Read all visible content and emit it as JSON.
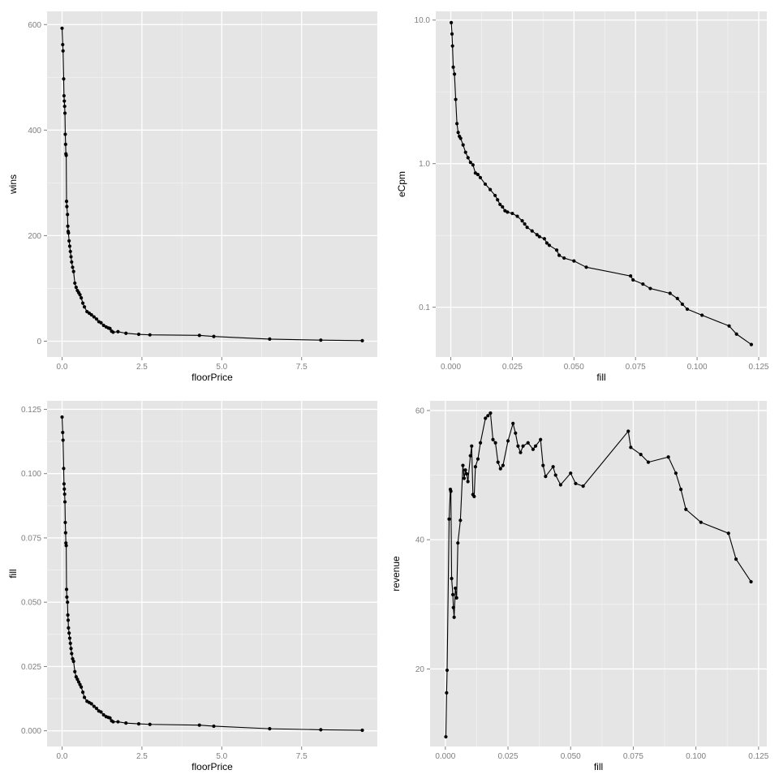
{
  "colors": {
    "panel_background": "#e5e5e5",
    "grid_major": "#ffffff",
    "grid_minor": "#f2f2f2",
    "series": "#000000",
    "tick_label": "#7f7f7f"
  },
  "chart_data": [
    {
      "type": "line",
      "markers": true,
      "xlabel": "floorPrice",
      "ylabel": "wins",
      "xlim": [
        -0.47,
        9.87
      ],
      "ylim": [
        -30,
        625
      ],
      "x_ticks": [
        0,
        2.5,
        5,
        7.5
      ],
      "x_tick_labels": [
        "0.0",
        "2.5",
        "5.0",
        "7.5"
      ],
      "y_ticks": [
        0,
        200,
        400,
        600
      ],
      "y_tick_labels": [
        "0",
        "200",
        "400",
        "600"
      ],
      "x": [
        0.0,
        0.02,
        0.03,
        0.05,
        0.06,
        0.07,
        0.08,
        0.09,
        0.1,
        0.11,
        0.12,
        0.13,
        0.14,
        0.15,
        0.17,
        0.18,
        0.19,
        0.2,
        0.22,
        0.24,
        0.26,
        0.28,
        0.3,
        0.33,
        0.36,
        0.4,
        0.44,
        0.48,
        0.52,
        0.56,
        0.6,
        0.65,
        0.7,
        0.78,
        0.85,
        0.92,
        1.0,
        1.08,
        1.15,
        1.22,
        1.3,
        1.38,
        1.45,
        1.5,
        1.55,
        1.6,
        1.75,
        2.0,
        2.4,
        2.75,
        4.3,
        4.75,
        6.5,
        8.1,
        9.4
      ],
      "y": [
        593,
        562,
        550,
        497,
        465,
        455,
        445,
        432,
        392,
        373,
        355,
        352,
        265,
        255,
        240,
        218,
        208,
        205,
        190,
        180,
        170,
        160,
        150,
        140,
        132,
        110,
        102,
        96,
        92,
        88,
        82,
        72,
        65,
        56,
        53,
        50,
        46,
        42,
        37,
        35,
        30,
        27,
        25,
        24,
        19,
        17,
        18,
        15,
        13,
        12,
        11,
        9,
        4,
        2,
        1
      ]
    },
    {
      "type": "line",
      "markers": true,
      "xlabel": "fill",
      "ylabel": "eCpm",
      "y_scale": "log10",
      "xlim": [
        -0.0061,
        0.1283
      ],
      "ylim": [
        0.045,
        11.5
      ],
      "x_ticks": [
        0,
        0.025,
        0.05,
        0.075,
        0.1,
        0.125
      ],
      "x_tick_labels": [
        "0.000",
        "0.025",
        "0.050",
        "0.075",
        "0.100",
        "0.125"
      ],
      "y_ticks": [
        0.1,
        1.0,
        10.0
      ],
      "y_tick_labels": [
        "0.1",
        "1.0",
        "10.0"
      ],
      "x": [
        0.0002,
        0.0005,
        0.0007,
        0.001,
        0.0015,
        0.002,
        0.0025,
        0.003,
        0.0035,
        0.004,
        0.005,
        0.006,
        0.007,
        0.008,
        0.009,
        0.01,
        0.011,
        0.012,
        0.014,
        0.016,
        0.018,
        0.019,
        0.02,
        0.021,
        0.022,
        0.023,
        0.025,
        0.027,
        0.029,
        0.03,
        0.031,
        0.033,
        0.035,
        0.036,
        0.038,
        0.039,
        0.04,
        0.043,
        0.044,
        0.046,
        0.05,
        0.055,
        0.073,
        0.074,
        0.078,
        0.081,
        0.089,
        0.092,
        0.094,
        0.096,
        0.102,
        0.113,
        0.116,
        0.122
      ],
      "y": [
        9.6,
        8.0,
        6.6,
        4.7,
        4.2,
        2.8,
        1.9,
        1.65,
        1.55,
        1.5,
        1.35,
        1.2,
        1.1,
        1.02,
        0.98,
        0.86,
        0.84,
        0.8,
        0.72,
        0.66,
        0.6,
        0.56,
        0.52,
        0.5,
        0.47,
        0.46,
        0.45,
        0.43,
        0.4,
        0.38,
        0.36,
        0.34,
        0.32,
        0.31,
        0.3,
        0.28,
        0.27,
        0.25,
        0.23,
        0.22,
        0.21,
        0.19,
        0.165,
        0.155,
        0.145,
        0.135,
        0.125,
        0.115,
        0.105,
        0.097,
        0.088,
        0.074,
        0.065,
        0.055
      ]
    },
    {
      "type": "line",
      "markers": true,
      "xlabel": "floorPrice",
      "ylabel": "fill",
      "xlim": [
        -0.47,
        9.87
      ],
      "ylim": [
        -0.0061,
        0.1283
      ],
      "x_ticks": [
        0,
        2.5,
        5,
        7.5
      ],
      "x_tick_labels": [
        "0.0",
        "2.5",
        "5.0",
        "7.5"
      ],
      "y_ticks": [
        0,
        0.025,
        0.05,
        0.075,
        0.1,
        0.125
      ],
      "y_tick_labels": [
        "0.000",
        "0.025",
        "0.050",
        "0.075",
        "0.100",
        "0.125"
      ],
      "x": [
        0.0,
        0.02,
        0.03,
        0.05,
        0.06,
        0.07,
        0.08,
        0.09,
        0.1,
        0.11,
        0.12,
        0.13,
        0.14,
        0.15,
        0.17,
        0.18,
        0.19,
        0.2,
        0.22,
        0.24,
        0.26,
        0.28,
        0.3,
        0.33,
        0.36,
        0.4,
        0.44,
        0.48,
        0.52,
        0.56,
        0.6,
        0.65,
        0.7,
        0.78,
        0.85,
        0.92,
        1.0,
        1.08,
        1.15,
        1.22,
        1.3,
        1.38,
        1.45,
        1.5,
        1.55,
        1.6,
        1.75,
        2.0,
        2.4,
        2.75,
        4.3,
        4.75,
        6.5,
        8.1,
        9.4
      ],
      "y": [
        0.122,
        0.116,
        0.113,
        0.102,
        0.096,
        0.094,
        0.092,
        0.089,
        0.081,
        0.077,
        0.073,
        0.072,
        0.055,
        0.052,
        0.05,
        0.045,
        0.043,
        0.04,
        0.038,
        0.036,
        0.034,
        0.032,
        0.03,
        0.028,
        0.027,
        0.023,
        0.021,
        0.02,
        0.019,
        0.018,
        0.017,
        0.015,
        0.013,
        0.0115,
        0.011,
        0.0105,
        0.0095,
        0.0087,
        0.0077,
        0.0073,
        0.0062,
        0.0055,
        0.0052,
        0.005,
        0.0039,
        0.0035,
        0.0035,
        0.003,
        0.0027,
        0.0025,
        0.0022,
        0.0018,
        0.0008,
        0.0004,
        0.0002
      ]
    },
    {
      "type": "line",
      "markers": true,
      "xlabel": "fill",
      "ylabel": "revenue",
      "xlim": [
        -0.0061,
        0.1283
      ],
      "ylim": [
        8,
        61.5
      ],
      "x_ticks": [
        0,
        0.025,
        0.05,
        0.075,
        0.1,
        0.125
      ],
      "x_tick_labels": [
        "0.000",
        "0.025",
        "0.050",
        "0.075",
        "0.100",
        "0.125"
      ],
      "y_ticks": [
        20,
        40,
        60
      ],
      "y_tick_labels": [
        "20",
        "40",
        "60"
      ],
      "x": [
        0.0002,
        0.0005,
        0.0007,
        0.0015,
        0.002,
        0.0022,
        0.0025,
        0.003,
        0.0032,
        0.0035,
        0.004,
        0.0045,
        0.005,
        0.006,
        0.007,
        0.0075,
        0.008,
        0.0085,
        0.009,
        0.01,
        0.0105,
        0.011,
        0.0115,
        0.012,
        0.013,
        0.014,
        0.016,
        0.017,
        0.018,
        0.019,
        0.02,
        0.021,
        0.022,
        0.023,
        0.025,
        0.027,
        0.028,
        0.029,
        0.03,
        0.031,
        0.033,
        0.035,
        0.036,
        0.038,
        0.039,
        0.04,
        0.043,
        0.044,
        0.046,
        0.05,
        0.052,
        0.055,
        0.073,
        0.074,
        0.078,
        0.081,
        0.089,
        0.092,
        0.094,
        0.096,
        0.102,
        0.113,
        0.116,
        0.122
      ],
      "y": [
        9.5,
        16.3,
        19.8,
        43.2,
        47.8,
        47.5,
        34.0,
        31.5,
        29.5,
        28.0,
        32.5,
        31.0,
        39.5,
        43.0,
        51.5,
        49.5,
        50.8,
        50.2,
        49.0,
        53.0,
        54.5,
        47.0,
        46.7,
        51.3,
        52.5,
        55.0,
        58.8,
        59.2,
        59.6,
        55.5,
        55.0,
        52.0,
        51.0,
        51.5,
        55.3,
        58.0,
        56.5,
        54.5,
        53.5,
        54.5,
        55.0,
        54.0,
        54.5,
        55.5,
        51.5,
        49.8,
        51.3,
        50.0,
        48.5,
        50.3,
        48.7,
        48.3,
        56.8,
        54.3,
        53.2,
        52.0,
        52.8,
        50.3,
        47.8,
        44.7,
        42.7,
        41.0,
        37.0,
        33.5
      ]
    }
  ]
}
